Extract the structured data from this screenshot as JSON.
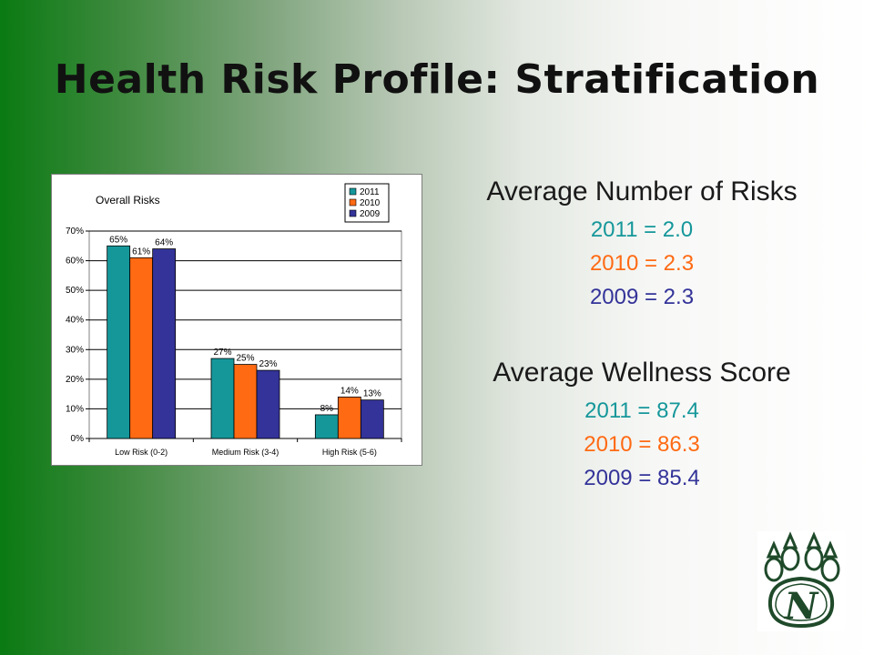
{
  "slide": {
    "title": "Health Risk Profile: Stratification"
  },
  "colors": {
    "2011": "#15979a",
    "2010": "#ff6a13",
    "2009": "#333399",
    "logo_green": "#1f4a2a"
  },
  "chart_data": {
    "type": "bar",
    "title": "Overall Risks",
    "categories": [
      "Low Risk (0-2)",
      "Medium Risk (3-4)",
      "High Risk (5-6)"
    ],
    "series": [
      {
        "name": "2011",
        "values": [
          65,
          27,
          8
        ],
        "labels": [
          "65%",
          "27%",
          "8%"
        ]
      },
      {
        "name": "2010",
        "values": [
          61,
          25,
          14
        ],
        "labels": [
          "61%",
          "25%",
          "14%"
        ]
      },
      {
        "name": "2009",
        "values": [
          64,
          23,
          13
        ],
        "labels": [
          "64%",
          "23%",
          "13%"
        ]
      }
    ],
    "ylim": [
      0,
      70
    ],
    "yticks": [
      "0%",
      "10%",
      "20%",
      "30%",
      "40%",
      "50%",
      "60%",
      "70%"
    ],
    "grid": true,
    "legend": "top-right"
  },
  "stats": {
    "risks": {
      "heading": "Average Number of Risks",
      "lines": [
        {
          "text": "2011 = 2.0",
          "series": "2011"
        },
        {
          "text": "2010 = 2.3",
          "series": "2010"
        },
        {
          "text": "2009 = 2.3",
          "series": "2009"
        }
      ]
    },
    "wellness": {
      "heading": "Average Wellness Score",
      "lines": [
        {
          "text": "2011 = 87.4",
          "series": "2011"
        },
        {
          "text": "2010 = 86.3",
          "series": "2010"
        },
        {
          "text": "2009 = 85.4",
          "series": "2009"
        }
      ]
    }
  },
  "logo": {
    "letter": "N",
    "icon": "paw-print-icon"
  }
}
